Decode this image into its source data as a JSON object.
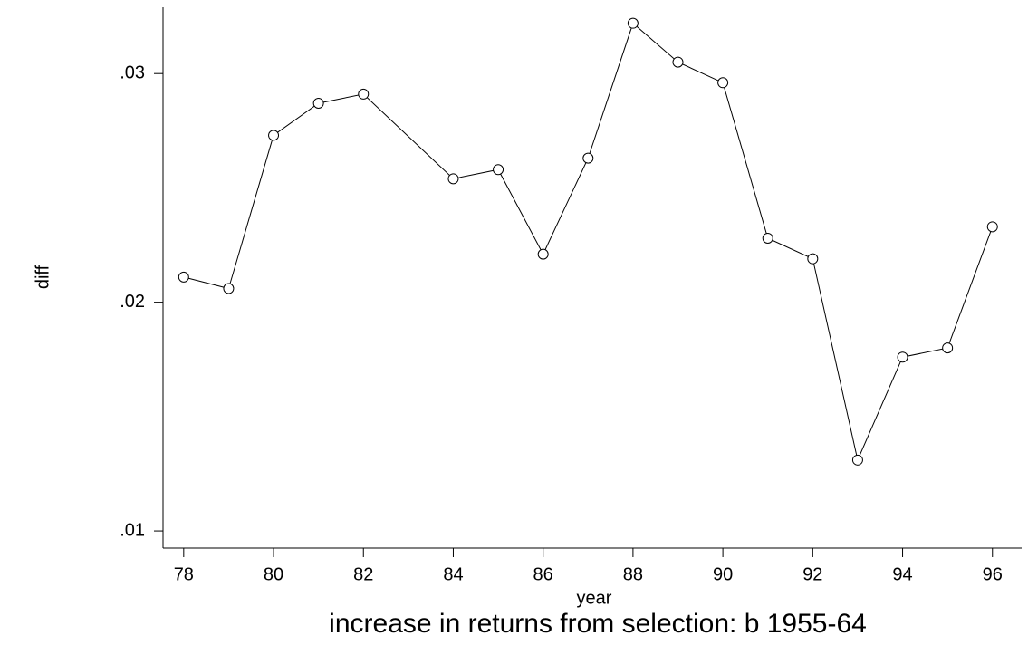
{
  "chart_data": {
    "type": "line",
    "title": "increase in returns from selection: b 1955-64",
    "x_label": "year",
    "y_label": "diff",
    "x": [
      78,
      79,
      80,
      81,
      82,
      84,
      85,
      86,
      87,
      88,
      89,
      90,
      91,
      92,
      93,
      94,
      95,
      96
    ],
    "series": [
      {
        "name": "diff",
        "color": "#000000",
        "values": [
          0.0211,
          0.0206,
          0.0273,
          0.0287,
          0.0291,
          0.0254,
          0.0258,
          0.0221,
          0.0263,
          0.0322,
          0.0305,
          0.0296,
          0.0228,
          0.0219,
          0.0131,
          0.0176,
          0.018,
          0.0233
        ]
      }
    ],
    "xlim": [
      77.54,
      96.65
    ],
    "ylim": [
      0.00925,
      0.0329
    ],
    "xticks": [
      78,
      80,
      82,
      84,
      86,
      88,
      90,
      92,
      94,
      96
    ],
    "yticks": [
      {
        "value": 0.01,
        "label": ".01"
      },
      {
        "value": 0.02,
        "label": ".02"
      },
      {
        "value": 0.03,
        "label": ".03"
      }
    ],
    "markers": "hollow-circle",
    "grid": false
  }
}
